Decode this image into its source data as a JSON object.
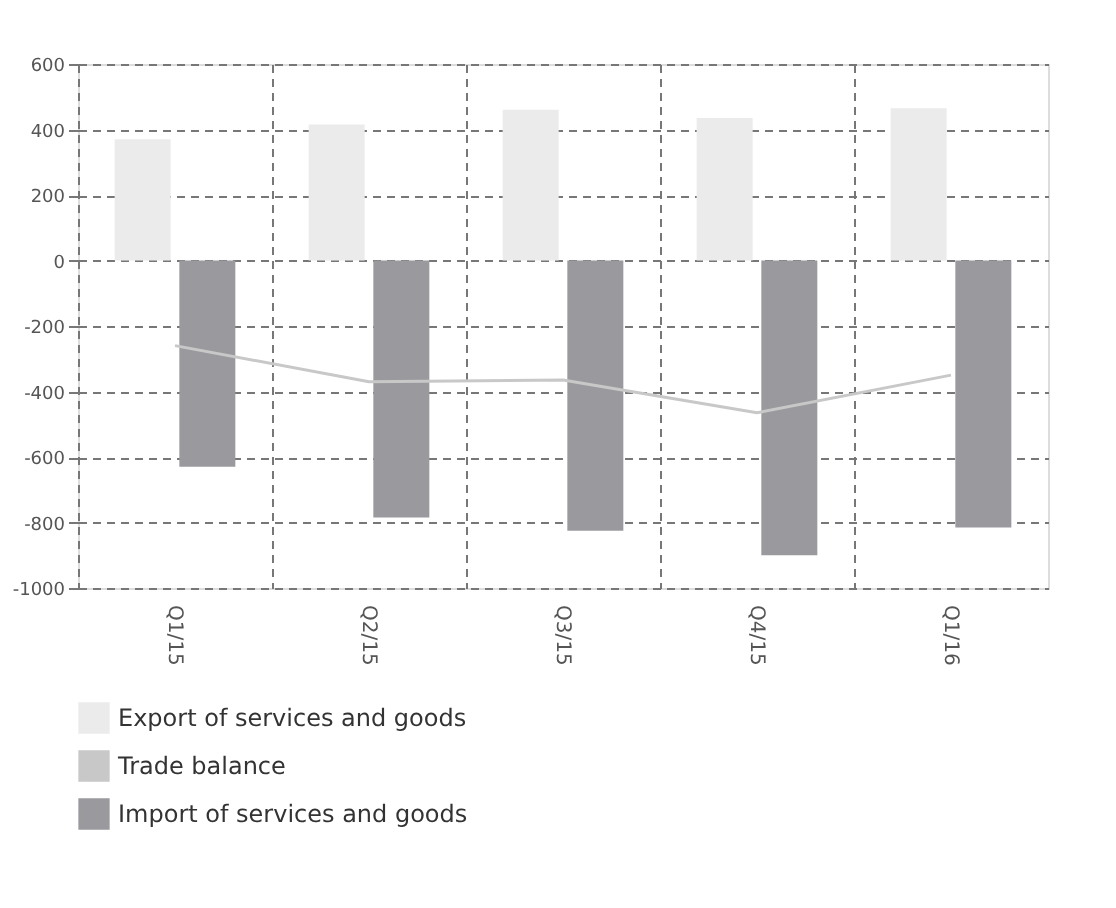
{
  "chart_data": {
    "type": "bar",
    "categories": [
      "Q1/15",
      "Q2/15",
      "Q3/15",
      "Q4/15",
      "Q1/16"
    ],
    "series": [
      {
        "name": "Export of services and goods",
        "color": "#ebebeb",
        "values": [
          370,
          415,
          460,
          435,
          465
        ]
      },
      {
        "name": "Trade balance",
        "type": "line",
        "color": "#c8c8c8",
        "values": [
          -260,
          -370,
          -365,
          -465,
          -350
        ]
      },
      {
        "name": "Import of services and goods",
        "color": "#9a9a9e",
        "values": [
          -630,
          -785,
          -825,
          -900,
          -815
        ]
      }
    ],
    "ylim": [
      -1000,
      600
    ],
    "yticks": [
      -1000,
      -800,
      -600,
      -400,
      -200,
      0,
      200,
      400,
      600
    ],
    "grid": true,
    "legend": "bottom"
  }
}
